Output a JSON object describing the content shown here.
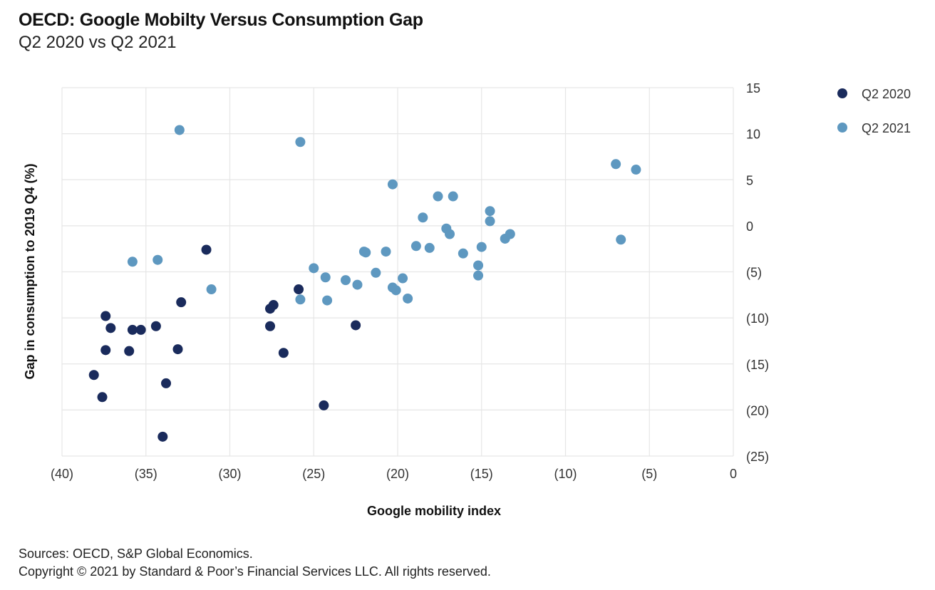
{
  "header": {
    "title": "OECD: Google Mobilty Versus Consumption Gap",
    "subtitle": "Q2 2020 vs Q2 2021"
  },
  "footer": {
    "sources": "Sources: OECD, S&P Global Economics.",
    "copyright": "Copyright © 2021 by Standard & Poor’s Financial Services LLC. All rights reserved."
  },
  "chart_data": {
    "type": "scatter",
    "title": "OECD: Google Mobilty Versus Consumption Gap",
    "subtitle": "Q2 2020 vs Q2 2021",
    "xlabel": "Google mobility index",
    "ylabel": "Gap in consumption to 2019 Q4 (%)",
    "xlim": [
      -40,
      0
    ],
    "ylim": [
      -25,
      15
    ],
    "x_ticks": [
      -40,
      -35,
      -30,
      -25,
      -20,
      -15,
      -10,
      -5,
      0
    ],
    "x_tick_labels": [
      "(40)",
      "(35)",
      "(30)",
      "(25)",
      "(20)",
      "(15)",
      "(10)",
      "(5)",
      "0"
    ],
    "y_ticks": [
      15,
      10,
      5,
      0,
      -5,
      -10,
      -15,
      -20,
      -25
    ],
    "y_tick_labels": [
      "15",
      "10",
      "5",
      "0",
      "(5)",
      "(10)",
      "(15)",
      "(20)",
      "(25)"
    ],
    "y_axis_side": "right",
    "grid": true,
    "legend_position": "top-right",
    "series": [
      {
        "name": "Q2 2020",
        "color": "#1a2b5c",
        "points": [
          [
            -31.4,
            -2.6
          ],
          [
            -32.9,
            -8.3
          ],
          [
            -37.4,
            -9.8
          ],
          [
            -37.1,
            -11.1
          ],
          [
            -35.8,
            -11.3
          ],
          [
            -35.3,
            -11.3
          ],
          [
            -34.4,
            -10.9
          ],
          [
            -37.4,
            -13.5
          ],
          [
            -36.0,
            -13.6
          ],
          [
            -33.1,
            -13.4
          ],
          [
            -38.1,
            -16.2
          ],
          [
            -33.8,
            -17.1
          ],
          [
            -37.6,
            -18.6
          ],
          [
            -34.0,
            -22.9
          ],
          [
            -27.4,
            -8.6
          ],
          [
            -27.6,
            -9.0
          ],
          [
            -27.6,
            -10.9
          ],
          [
            -25.9,
            -6.9
          ],
          [
            -22.5,
            -10.8
          ],
          [
            -26.8,
            -13.8
          ],
          [
            -24.4,
            -19.5
          ]
        ]
      },
      {
        "name": "Q2 2021",
        "color": "#5e98c0",
        "points": [
          [
            -33.0,
            10.4
          ],
          [
            -25.8,
            9.1
          ],
          [
            -35.8,
            -3.9
          ],
          [
            -34.3,
            -3.7
          ],
          [
            -31.1,
            -6.9
          ],
          [
            -20.3,
            4.5
          ],
          [
            -17.6,
            3.2
          ],
          [
            -16.7,
            3.2
          ],
          [
            -18.5,
            0.9
          ],
          [
            -17.1,
            -0.3
          ],
          [
            -16.9,
            -0.9
          ],
          [
            -14.5,
            1.6
          ],
          [
            -14.5,
            0.5
          ],
          [
            -13.3,
            -0.9
          ],
          [
            -13.6,
            -1.4
          ],
          [
            -18.9,
            -2.2
          ],
          [
            -18.1,
            -2.4
          ],
          [
            -16.1,
            -3.0
          ],
          [
            -15.0,
            -2.3
          ],
          [
            -22.0,
            -2.8
          ],
          [
            -21.9,
            -2.9
          ],
          [
            -20.7,
            -2.8
          ],
          [
            -15.2,
            -4.3
          ],
          [
            -15.2,
            -5.4
          ],
          [
            -25.0,
            -4.6
          ],
          [
            -24.3,
            -5.6
          ],
          [
            -23.1,
            -5.9
          ],
          [
            -22.4,
            -6.4
          ],
          [
            -21.3,
            -5.1
          ],
          [
            -19.7,
            -5.7
          ],
          [
            -20.3,
            -6.7
          ],
          [
            -20.1,
            -7.0
          ],
          [
            -19.4,
            -7.9
          ],
          [
            -25.8,
            -8.0
          ],
          [
            -24.2,
            -8.1
          ],
          [
            -7.0,
            6.7
          ],
          [
            -5.8,
            6.1
          ],
          [
            -6.7,
            -1.5
          ]
        ]
      }
    ]
  }
}
